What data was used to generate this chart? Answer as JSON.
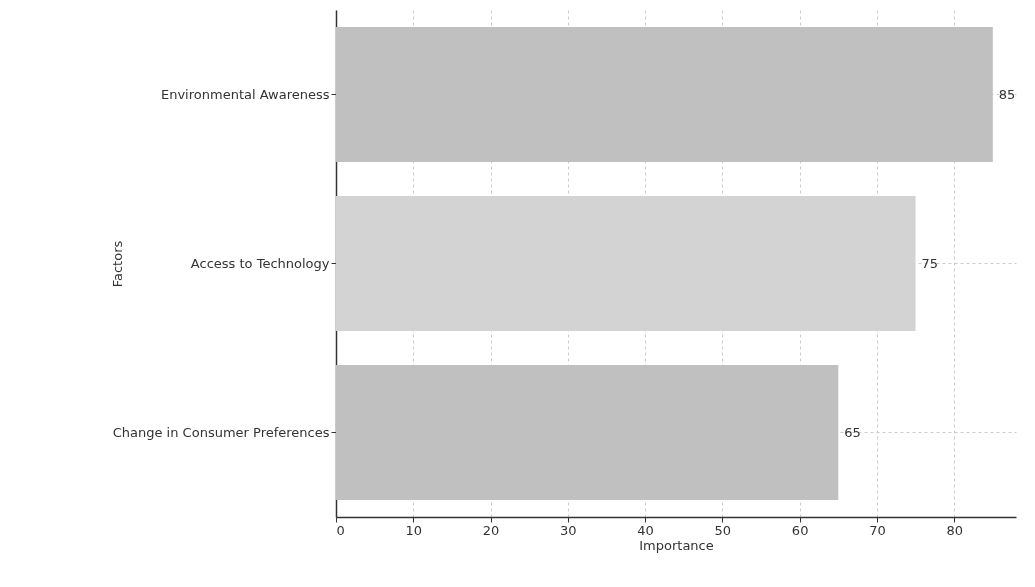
{
  "chart_data": {
    "type": "bar",
    "orientation": "horizontal",
    "xlabel": "Importance",
    "ylabel": "Factors",
    "categories": [
      "Environmental Awareness",
      "Access to Technology",
      "Change in Consumer Preferences"
    ],
    "values": [
      85,
      75,
      65
    ],
    "colors": [
      "#c0c0c0",
      "#d3d3d3",
      "#c0c0c0"
    ],
    "xlim": [
      0,
      88
    ],
    "xticks": [
      0,
      10,
      20,
      30,
      40,
      50,
      60,
      70,
      80
    ],
    "grid": true,
    "data_labels": true
  }
}
